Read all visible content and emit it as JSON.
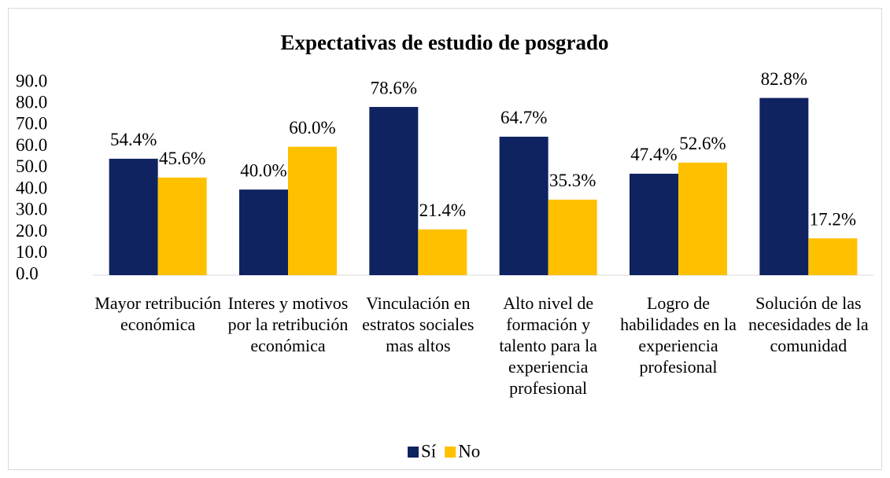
{
  "chart_data": {
    "type": "bar",
    "title": "Expectativas de estudio de posgrado",
    "categories": [
      "Mayor retribución económica",
      "Interes y motivos por la retribución económica",
      "Vinculación en estratos sociales mas altos",
      "Alto nivel de formación y talento para la experiencia profesional",
      "Logro de habilidades en la experiencia profesional",
      "Solución de las necesidades de la comunidad"
    ],
    "series": [
      {
        "name": "Sí",
        "color": "#0e2360",
        "values": [
          54.4,
          40.0,
          78.6,
          64.7,
          47.4,
          82.8
        ],
        "value_labels": [
          "54.4%",
          "40.0%",
          "78.6%",
          "64.7%",
          "47.4%",
          "82.8%"
        ]
      },
      {
        "name": "No",
        "color": "#ffc000",
        "values": [
          45.6,
          60.0,
          21.4,
          35.3,
          52.6,
          17.2
        ],
        "value_labels": [
          "45.6%",
          "60.0%",
          "21.4%",
          "35.3%",
          "52.6%",
          "17.2%"
        ]
      }
    ],
    "ylim": [
      0,
      90
    ],
    "yticks": [
      {
        "value": 0,
        "label": "0.0"
      },
      {
        "value": 10,
        "label": "10.0"
      },
      {
        "value": 20,
        "label": "20.0"
      },
      {
        "value": 30,
        "label": "30.0"
      },
      {
        "value": 40,
        "label": "40.0"
      },
      {
        "value": 50,
        "label": "50.0"
      },
      {
        "value": 60,
        "label": "60.0"
      },
      {
        "value": 70,
        "label": "70.0"
      },
      {
        "value": 80,
        "label": "80.0"
      },
      {
        "value": 90,
        "label": "90.0"
      }
    ],
    "legend": "bottom"
  }
}
